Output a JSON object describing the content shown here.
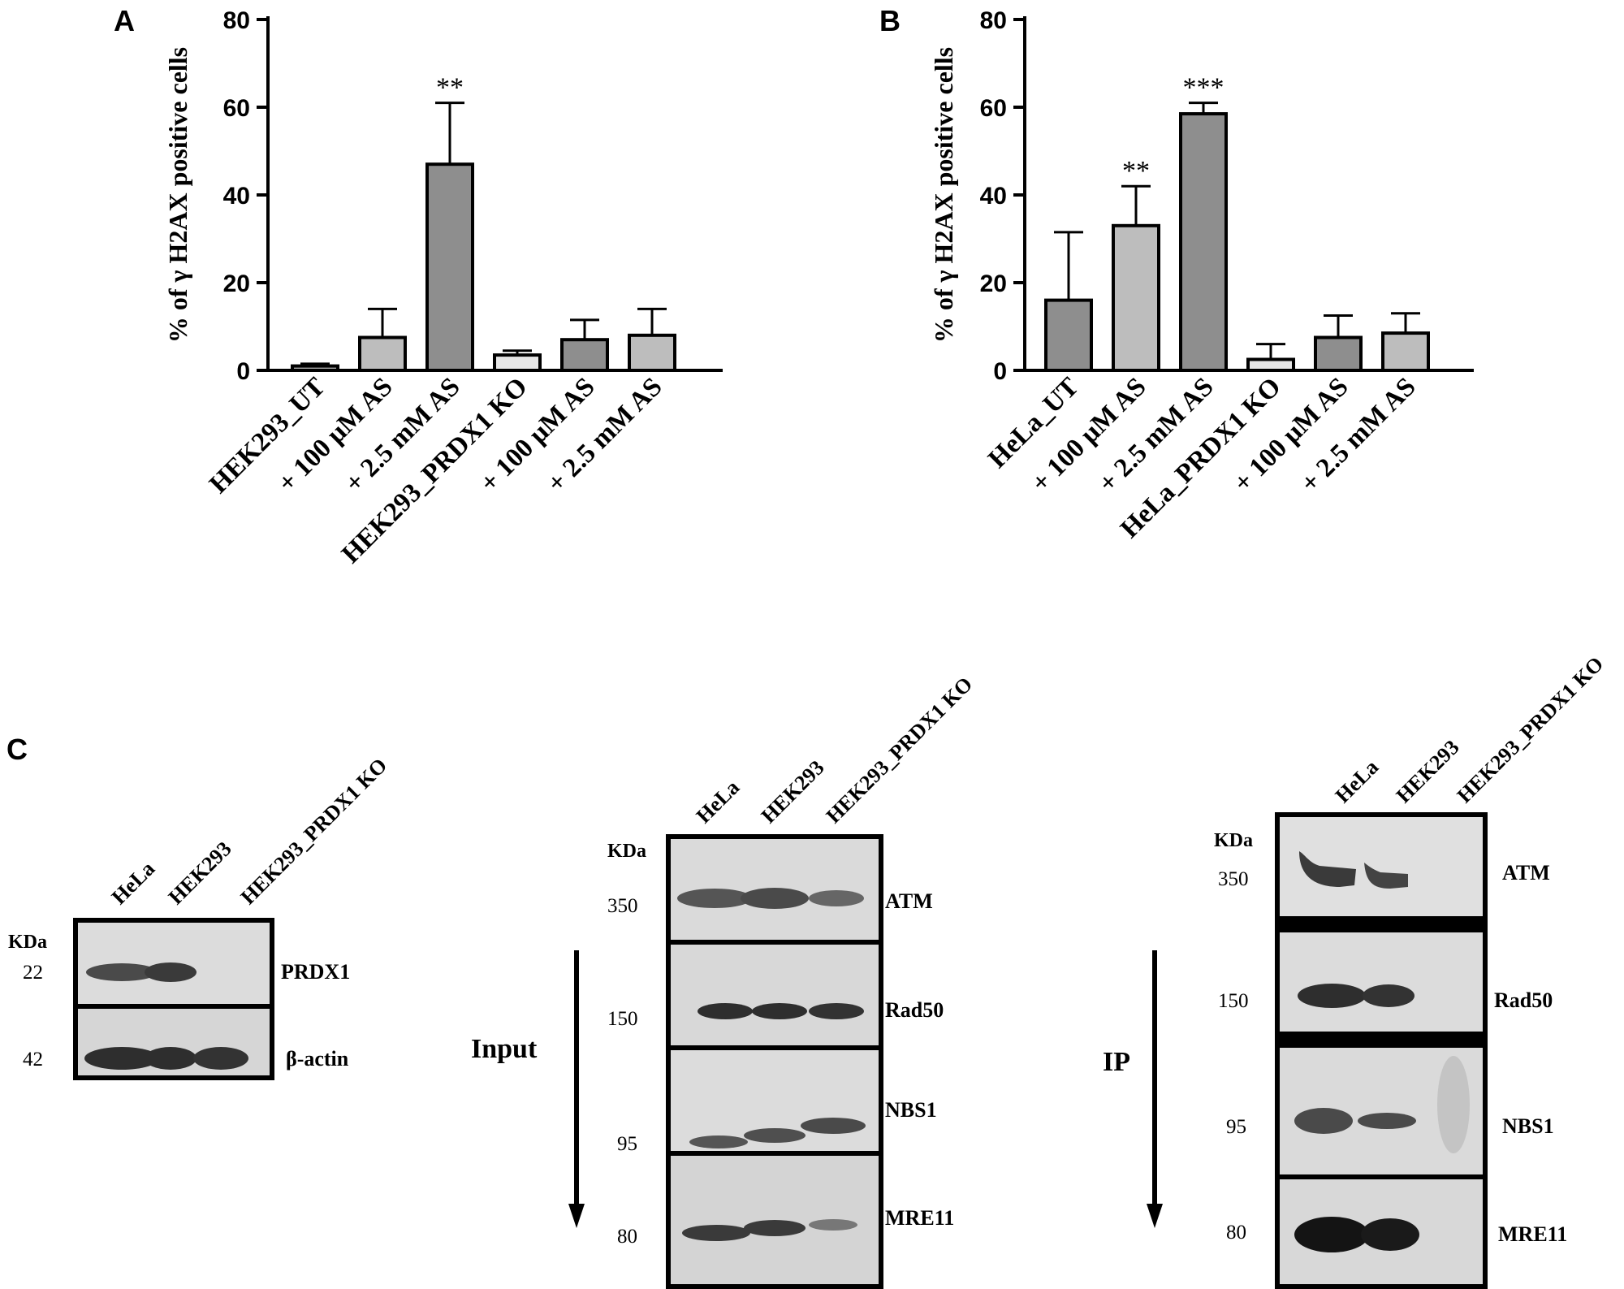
{
  "chart_data": [
    {
      "panel": "A",
      "type": "bar",
      "ylabel": "% of γ H2AX positive cells",
      "ylim": [
        0,
        80
      ],
      "yticks": [
        0,
        20,
        40,
        60,
        80
      ],
      "categories": [
        "HEK293_UT",
        "+ 100 μM AS",
        "+ 2.5 mM AS",
        "HEK293_PRDX1 KO",
        "+ 100 μM AS",
        "+ 2.5 mM AS"
      ],
      "values": [
        1,
        7.5,
        47,
        3.5,
        7,
        8
      ],
      "errors": [
        0.5,
        6.5,
        14,
        1,
        4.5,
        6
      ],
      "significance": [
        "",
        "",
        "**",
        "",
        "",
        ""
      ],
      "bar_colors": [
        "#a6a6a6",
        "#bdbdbd",
        "#8e8e8e",
        "#e6e6e6",
        "#8e8e8e",
        "#bdbdbd"
      ]
    },
    {
      "panel": "B",
      "type": "bar",
      "ylabel": "% of γ H2AX positive cells",
      "ylim": [
        0,
        80
      ],
      "yticks": [
        0,
        20,
        40,
        60,
        80
      ],
      "categories": [
        "HeLa_UT",
        "+ 100 μM AS",
        "+ 2.5 mM AS",
        "HeLa_PRDX1 KO",
        "+ 100 μM AS",
        "+ 2.5 mM AS"
      ],
      "values": [
        16,
        33,
        58.5,
        2.5,
        7.5,
        8.5
      ],
      "errors": [
        15.5,
        9,
        2.5,
        3.5,
        5,
        4.5
      ],
      "significance": [
        "",
        "**",
        "***",
        "",
        "",
        ""
      ],
      "bar_colors": [
        "#8e8e8e",
        "#bdbdbd",
        "#8e8e8e",
        "#e6e6e6",
        "#8e8e8e",
        "#bdbdbd"
      ]
    }
  ],
  "panel_c": {
    "letter": "C",
    "blot1": {
      "lanes": [
        "HeLa",
        "HEK293",
        "HEK293_PRDX1 KO"
      ],
      "kda_label": "KDa",
      "rows": [
        {
          "mw": "22",
          "protein": "PRDX1"
        },
        {
          "mw": "42",
          "protein": "β-actin"
        }
      ]
    },
    "blot2": {
      "lanes": [
        "HeLa",
        "HEK293",
        "HEK293_PRDX1 KO"
      ],
      "kda_label": "KDa",
      "side_label": "Input",
      "rows": [
        {
          "mw": "350",
          "protein": "ATM"
        },
        {
          "mw": "150",
          "protein": "Rad50"
        },
        {
          "mw": "95",
          "protein": "NBS1"
        },
        {
          "mw": "80",
          "protein": "MRE11"
        }
      ]
    },
    "blot3": {
      "lanes": [
        "HeLa",
        "HEK293",
        "HEK293_PRDX1 KO"
      ],
      "kda_label": "KDa",
      "side_label": "IP",
      "rows": [
        {
          "mw": "350",
          "protein": "ATM"
        },
        {
          "mw": "150",
          "protein": "Rad50"
        },
        {
          "mw": "95",
          "protein": "NBS1"
        },
        {
          "mw": "80",
          "protein": "MRE11"
        }
      ]
    }
  },
  "colors": {
    "axis": "#000000",
    "membrane": "#dcdcdc",
    "band": "#3a3a3a"
  }
}
